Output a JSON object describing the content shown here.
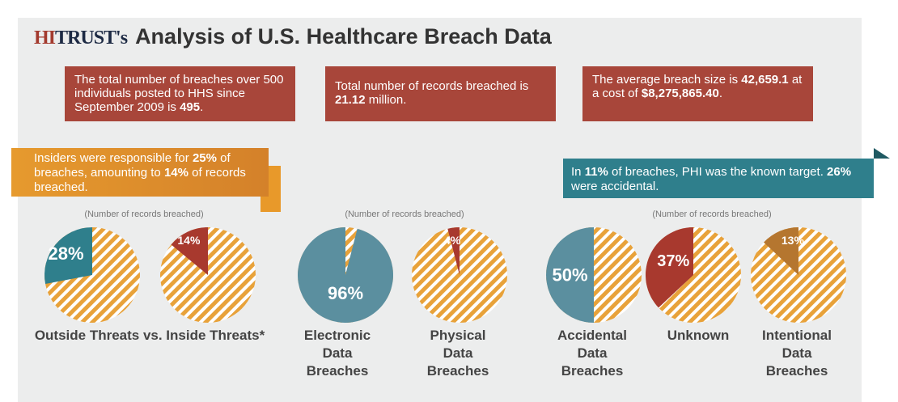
{
  "title": {
    "logo": "HITRUST",
    "logo_suffix": "'s",
    "text": "Analysis of U.S. Healthcare Breach Data"
  },
  "facts": [
    {
      "pre": "The total number of breaches over 500 individuals posted to HHS since September 2009 is ",
      "bold": "495",
      "post": "."
    },
    {
      "pre": "Total number of records breached is ",
      "bold": "21.12",
      "post": " million."
    },
    {
      "pre": "The average breach size is ",
      "bold": "42,659.1",
      "mid": " at a cost of ",
      "bold2": "$8,275,865.40",
      "post": "."
    }
  ],
  "insiders": {
    "a": "Insiders were responsible for ",
    "b": "25%",
    "c": " of breaches, amounting to ",
    "d": "14%",
    "e": " of records breached."
  },
  "phi": {
    "a": "In ",
    "b": "11%",
    "c": " of breaches, PHI was the known target. ",
    "d": "26%",
    "e": " were accidental."
  },
  "subtitle": "(Number of records breached)",
  "group_label_1": "Outside Threats vs. Inside Threats*",
  "colors": {
    "hatch": "#e8a23a",
    "teal": "#2f7f8c",
    "blue": "#5b8f9f",
    "red": "#a8392e",
    "brown": "#b5762f"
  },
  "chart_data": {
    "type": "pie",
    "pies": [
      {
        "label": "",
        "value": 28,
        "text": "28%",
        "color": "#2f7f8c"
      },
      {
        "label": "",
        "value": 14,
        "text": "14%",
        "color": "#a8392e"
      },
      {
        "label": "Electronic Data Breaches",
        "value": 96,
        "text": "96%",
        "color": "#5b8f9f"
      },
      {
        "label": "Physical Data Breaches",
        "value": 4,
        "text": "4%",
        "color": "#a8392e"
      },
      {
        "label": "Accidental Data Breaches",
        "value": 50,
        "text": "50%",
        "color": "#5b8f9f"
      },
      {
        "label": "Unknown",
        "value": 37,
        "text": "37%",
        "color": "#a8392e"
      },
      {
        "label": "Intentional Data Breaches",
        "value": 13,
        "text": "13%",
        "color": "#b5762f"
      }
    ]
  }
}
